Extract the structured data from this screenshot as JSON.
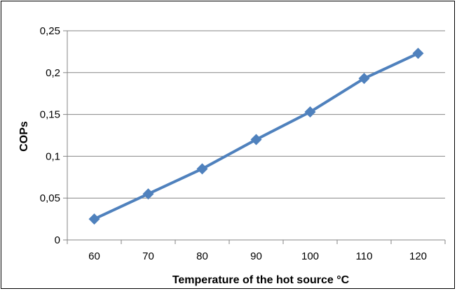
{
  "chart_data": {
    "type": "line",
    "title": "",
    "xlabel": "Temperature of the hot source °C",
    "ylabel": "COPs",
    "categories": [
      "60",
      "70",
      "80",
      "90",
      "100",
      "110",
      "120"
    ],
    "series": [
      {
        "values": [
          0.025,
          0.055,
          0.085,
          0.12,
          0.153,
          0.193,
          0.223
        ]
      }
    ],
    "ylim": [
      0,
      0.25
    ],
    "yticks": [
      0,
      0.05,
      0.1,
      0.15,
      0.2,
      0.25
    ],
    "ytick_labels": [
      "0",
      "0,05",
      "0,1",
      "0,15",
      "0,2",
      "0,25"
    ],
    "grid": true,
    "marker": "diamond",
    "colors": {
      "line": "#4f81bd",
      "marker": "#4f81bd",
      "grid": "#868686",
      "axis": "#868686"
    }
  }
}
